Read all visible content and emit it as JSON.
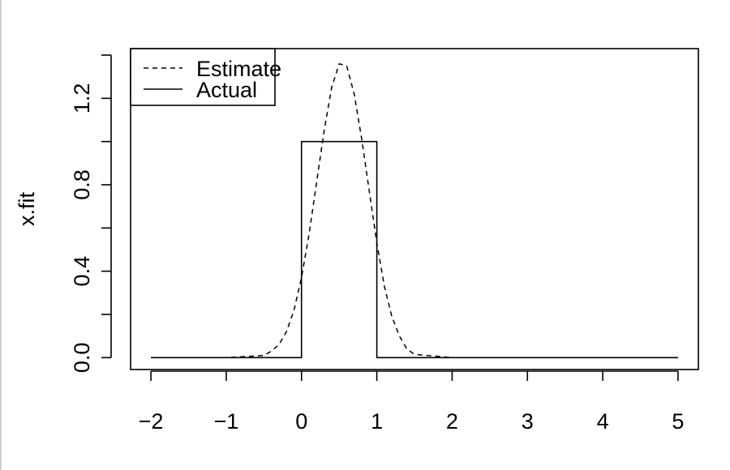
{
  "chart_data": {
    "type": "line",
    "title": "",
    "xlabel": "",
    "ylabel": "x.fit",
    "xlim": [
      -2.27,
      5.27
    ],
    "ylim": [
      -0.055,
      1.43
    ],
    "grid": false,
    "legend_placement": "top-left",
    "x_ticks": [
      -2,
      -1,
      0,
      1,
      2,
      3,
      4,
      5
    ],
    "x_tick_labels": [
      "−2",
      "−1",
      "0",
      "1",
      "2",
      "3",
      "4",
      "5"
    ],
    "y_ticks": [
      0.0,
      0.2,
      0.4,
      0.6,
      0.8,
      1.0,
      1.2,
      1.4
    ],
    "y_tick_labels": [
      "0.0",
      "0.4",
      "0.8",
      "1.2"
    ],
    "y_labeled_ticks": [
      0.0,
      0.4,
      0.8,
      1.2
    ],
    "series": [
      {
        "name": "Estimate",
        "style": "dashed",
        "color": "#000000",
        "x": [
          -2.0,
          -1.0,
          -0.5,
          -0.4,
          -0.3,
          -0.2,
          -0.1,
          0.0,
          0.1,
          0.2,
          0.3,
          0.4,
          0.5,
          0.6,
          0.7,
          0.8,
          0.9,
          1.0,
          1.1,
          1.2,
          1.3,
          1.4,
          1.5,
          2.0,
          3.0,
          4.0,
          5.0
        ],
        "y": [
          0.0,
          0.0,
          0.01,
          0.03,
          0.06,
          0.12,
          0.22,
          0.37,
          0.57,
          0.81,
          1.05,
          1.25,
          1.36,
          1.35,
          1.22,
          1.01,
          0.77,
          0.53,
          0.33,
          0.19,
          0.1,
          0.04,
          0.015,
          0.0,
          0.0,
          0.0,
          0.0
        ]
      },
      {
        "name": "Actual",
        "style": "solid",
        "color": "#000000",
        "x": [
          -2.0,
          0.0,
          0.0,
          1.0,
          1.0,
          5.0
        ],
        "y": [
          0.0,
          0.0,
          1.0,
          1.0,
          0.0,
          0.0
        ]
      }
    ]
  }
}
